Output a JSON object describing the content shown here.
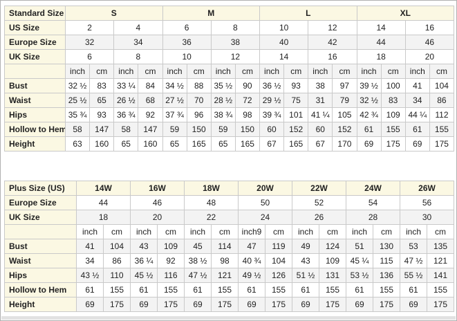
{
  "colors": {
    "header_bg": "#fbf8e3",
    "stripe_bg": "#f3f3f3",
    "border": "#c9c9c9",
    "text": "#1f1f1f"
  },
  "tables": [
    {
      "name": "standard-size-table",
      "corner_label": "Standard Size",
      "group_span": 4,
      "size_groups": [
        "S",
        "M",
        "L",
        "XL"
      ],
      "rows": [
        {
          "label": "US Size",
          "span": 2,
          "values": [
            "2",
            "4",
            "6",
            "8",
            "10",
            "12",
            "14",
            "16"
          ]
        },
        {
          "label": "Europe Size",
          "span": 2,
          "values": [
            "32",
            "34",
            "36",
            "38",
            "40",
            "42",
            "44",
            "46"
          ]
        },
        {
          "label": "UK Size",
          "span": 2,
          "values": [
            "6",
            "8",
            "10",
            "12",
            "14",
            "16",
            "18",
            "20"
          ]
        },
        {
          "label": "",
          "span": 1,
          "values": [
            "inch",
            "cm",
            "inch",
            "cm",
            "inch",
            "cm",
            "inch",
            "cm",
            "inch",
            "cm",
            "inch",
            "cm",
            "inch",
            "cm",
            "inch",
            "cm"
          ]
        },
        {
          "label": "Bust",
          "span": 1,
          "values": [
            "32 ½",
            "83",
            "33 ¼",
            "84",
            "34 ½",
            "88",
            "35 ½",
            "90",
            "36 ½",
            "93",
            "38",
            "97",
            "39 ½",
            "100",
            "41",
            "104"
          ]
        },
        {
          "label": "Waist",
          "span": 1,
          "values": [
            "25 ½",
            "65",
            "26 ½",
            "68",
            "27 ½",
            "70",
            "28 ½",
            "72",
            "29 ½",
            "75",
            "31",
            "79",
            "32 ½",
            "83",
            "34",
            "86"
          ]
        },
        {
          "label": "Hips",
          "span": 1,
          "values": [
            "35 ¾",
            "93",
            "36 ¾",
            "92",
            "37 ¾",
            "96",
            "38 ¾",
            "98",
            "39 ¾",
            "101",
            "41 ¼",
            "105",
            "42 ¾",
            "109",
            "44 ¼",
            "112"
          ]
        },
        {
          "label": "Hollow to Hem",
          "span": 1,
          "values": [
            "58",
            "147",
            "58",
            "147",
            "59",
            "150",
            "59",
            "150",
            "60",
            "152",
            "60",
            "152",
            "61",
            "155",
            "61",
            "155"
          ]
        },
        {
          "label": "Height",
          "span": 1,
          "values": [
            "63",
            "160",
            "65",
            "160",
            "65",
            "165",
            "65",
            "165",
            "67",
            "165",
            "67",
            "170",
            "69",
            "175",
            "69",
            "175"
          ]
        }
      ]
    },
    {
      "name": "plus-size-table",
      "corner_label": "Plus Size (US)",
      "group_span": 2,
      "size_groups": [
        "14W",
        "16W",
        "18W",
        "20W",
        "22W",
        "24W",
        "26W"
      ],
      "rows": [
        {
          "label": "Europe Size",
          "span": 2,
          "values": [
            "44",
            "46",
            "48",
            "50",
            "52",
            "54",
            "56"
          ]
        },
        {
          "label": "UK Size",
          "span": 2,
          "values": [
            "18",
            "20",
            "22",
            "24",
            "26",
            "28",
            "30"
          ]
        },
        {
          "label": "",
          "span": 1,
          "values": [
            "inch",
            "cm",
            "inch",
            "cm",
            "inch",
            "cm",
            "inch9",
            "cm",
            "inch",
            "cm",
            "inch",
            "cm",
            "inch",
            "cm"
          ]
        },
        {
          "label": "Bust",
          "span": 1,
          "values": [
            "41",
            "104",
            "43",
            "109",
            "45",
            "114",
            "47",
            "119",
            "49",
            "124",
            "51",
            "130",
            "53",
            "135"
          ]
        },
        {
          "label": "Waist",
          "span": 1,
          "values": [
            "34",
            "86",
            "36 ¼",
            "92",
            "38 ½",
            "98",
            "40 ¾",
            "104",
            "43",
            "109",
            "45 ¼",
            "115",
            "47 ½",
            "121"
          ]
        },
        {
          "label": "Hips",
          "span": 1,
          "values": [
            "43 ½",
            "110",
            "45 ½",
            "116",
            "47 ½",
            "121",
            "49 ½",
            "126",
            "51 ½",
            "131",
            "53 ½",
            "136",
            "55 ½",
            "141"
          ]
        },
        {
          "label": "Hollow to Hem",
          "span": 1,
          "values": [
            "61",
            "155",
            "61",
            "155",
            "61",
            "155",
            "61",
            "155",
            "61",
            "155",
            "61",
            "155",
            "61",
            "155"
          ]
        },
        {
          "label": "Height",
          "span": 1,
          "values": [
            "69",
            "175",
            "69",
            "175",
            "69",
            "175",
            "69",
            "175",
            "69",
            "175",
            "69",
            "175",
            "69",
            "175"
          ]
        }
      ]
    }
  ]
}
